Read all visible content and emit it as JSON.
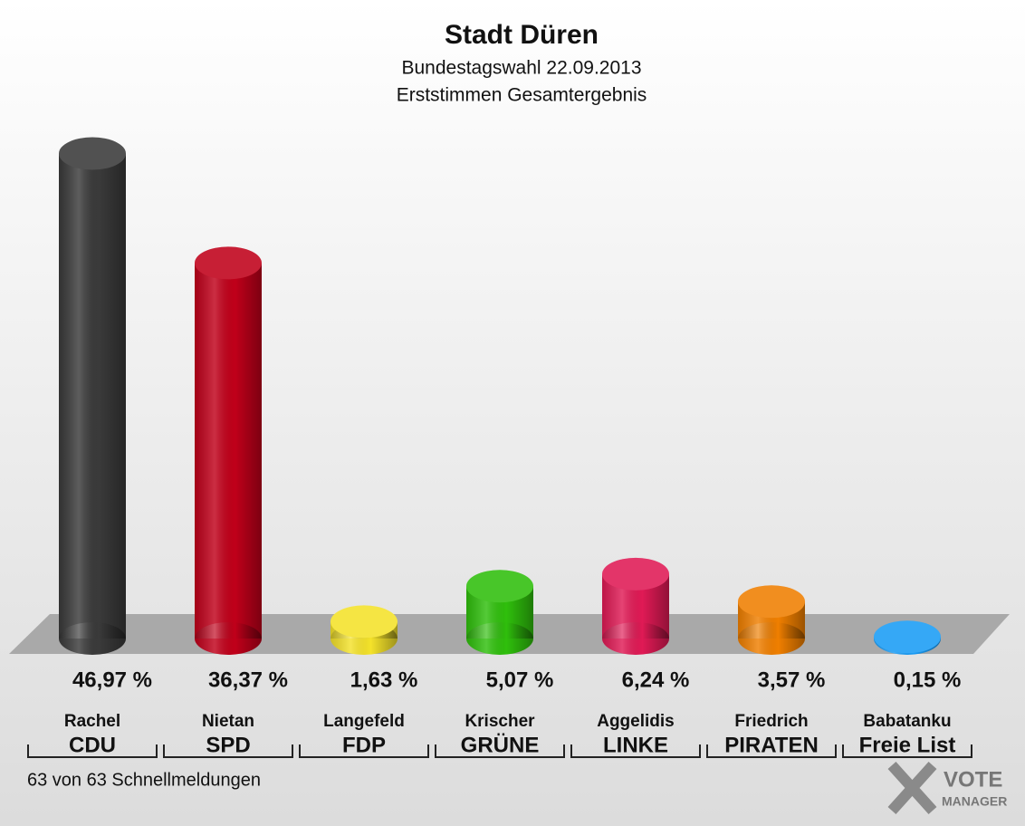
{
  "chart_data": {
    "type": "bar",
    "title": "Stadt Düren",
    "subtitle": "Bundestagswahl 22.09.2013",
    "subtitle2": "Erststimmen Gesamtergebnis",
    "categories": [
      "CDU",
      "SPD",
      "FDP",
      "GRÜNE",
      "LINKE",
      "PIRATEN",
      "Freie List"
    ],
    "candidates": [
      "Rachel",
      "Nietan",
      "Langefeld",
      "Krischer",
      "Aggelidis",
      "Friedrich",
      "Babatanku"
    ],
    "values": [
      46.97,
      36.37,
      1.63,
      5.07,
      6.24,
      3.57,
      0.15
    ],
    "value_labels": [
      "46,97 %",
      "36,37 %",
      "1,63 %",
      "5,07 %",
      "6,24 %",
      "3,57 %",
      "0,15 %"
    ],
    "colors": [
      "#3a3a3a",
      "#c0001a",
      "#f4e22a",
      "#2fbf0c",
      "#e01a55",
      "#f07f00",
      "#1a9cf5"
    ],
    "footer": "63 von 63 Schnellmeldungen",
    "logo": {
      "line1": "VOTE",
      "line2": "MANAGER"
    }
  }
}
